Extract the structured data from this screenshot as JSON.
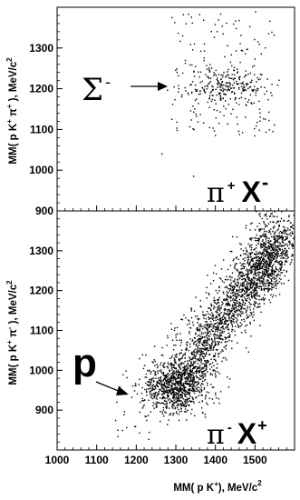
{
  "chart_data": [
    {
      "type": "scatter",
      "panel": "top",
      "xlim": [
        1000,
        1600
      ],
      "ylim": [
        900,
        1400
      ],
      "ylabel": "MM( p K⁺ π⁺ ), MeV/c²",
      "ylabel_parts": {
        "base": "MM( p K",
        "sup1": "+",
        "mid": " π",
        "sup2": "+",
        "end": " ), MeV/c",
        "sup3": "2"
      },
      "yticks": [
        900,
        1000,
        1100,
        1200,
        1300
      ],
      "label": {
        "pi": "π",
        "pi_sup": "+",
        "x": "X",
        "x_sup": "-"
      },
      "annotation": {
        "symbol": "Σ",
        "sup": "-"
      },
      "clusters": [
        {
          "name": "",
          "count": 230,
          "x_mean": 1430,
          "x_sd": 55,
          "y_mean": 1205,
          "y_sd": 22
        },
        {
          "name": "",
          "count": 170,
          "x_range": [
            1290,
            1550
          ],
          "y_range": [
            1080,
            1390
          ]
        }
      ],
      "extra_points": [
        [
          1265,
          1040
        ],
        [
          1345,
          985
        ],
        [
          1290,
          1125
        ]
      ]
    },
    {
      "type": "scatter",
      "panel": "bottom",
      "xlim": [
        1000,
        1600
      ],
      "ylim": [
        800,
        1400
      ],
      "xlabel": "MM( p K⁺), MeV/c²",
      "xlabel_parts": {
        "base": "MM( p K",
        "sup1": "+",
        "end": "), MeV/c",
        "sup2": "2"
      },
      "ylabel": "MM( p K⁺ π⁻ ), MeV/c²",
      "ylabel_parts": {
        "base": "MM( p K",
        "sup1": "+",
        "mid": " π",
        "sup2": "-",
        "end": " ), MeV/c",
        "sup3": "2"
      },
      "xticks": [
        1000,
        1100,
        1200,
        1300,
        1400,
        1500
      ],
      "yticks": [
        900,
        1000,
        1100,
        1200,
        1300
      ],
      "label": {
        "pi": "π",
        "pi_sup": "-",
        "x": "X",
        "x_sup": "+"
      },
      "annotation": {
        "symbol": "p"
      },
      "clusters": [
        {
          "name": "",
          "count": 900,
          "x_mean": 1300,
          "x_sd": 40,
          "y_mean": 960,
          "y_sd": 32
        },
        {
          "name": "",
          "count": 1500,
          "band_x": [
            1330,
            1560
          ],
          "band_y": [
            1000,
            1320
          ],
          "width": 42
        },
        {
          "name": "",
          "count": 520,
          "band_x": [
            1500,
            1560
          ],
          "band_y": [
            1210,
            1360
          ],
          "width": 40
        },
        {
          "name": "",
          "count": 220,
          "x_range": [
            1140,
            1600
          ],
          "y_range": [
            820,
            1400
          ],
          "sparse": true
        }
      ]
    }
  ]
}
